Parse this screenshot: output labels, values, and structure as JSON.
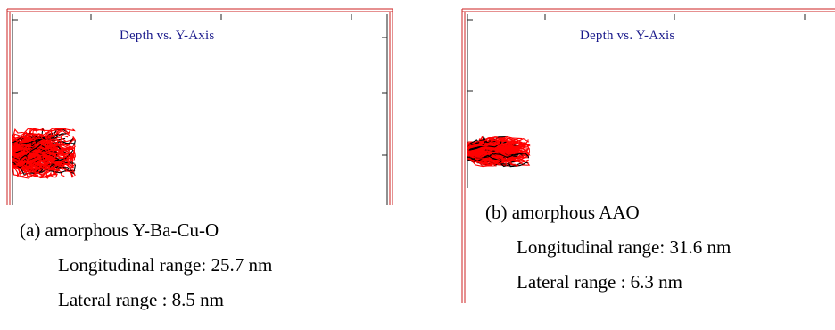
{
  "chart_data": [
    {
      "type": "scatter",
      "title": "Depth vs. Y-Axis",
      "series": [
        {
          "color": "#ff0000",
          "edge_color": "#000000"
        }
      ],
      "caption": {
        "label": "(a) amorphous Y-Ba-Cu-O",
        "longitudinal": "Longitudinal range: 25.7 nm",
        "lateral": "Lateral range : 8.5 nm"
      },
      "cluster": {
        "longitudinal_nm": 25.7,
        "lateral_nm": 8.5
      },
      "frame_color": "#cc2222",
      "grid": false
    },
    {
      "type": "scatter",
      "title": "Depth vs. Y-Axis",
      "series": [
        {
          "color": "#ff0000",
          "edge_color": "#000000"
        }
      ],
      "caption": {
        "label": "(b) amorphous AAO",
        "longitudinal": "Longitudinal range: 31.6 nm",
        "lateral": "Lateral range : 6.3 nm"
      },
      "cluster": {
        "longitudinal_nm": 31.6,
        "lateral_nm": 6.3
      },
      "frame_color": "#cc2222",
      "grid": false
    }
  ]
}
